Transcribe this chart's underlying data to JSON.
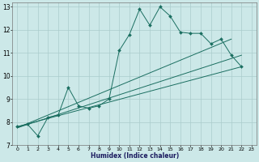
{
  "title": "",
  "xlabel": "Humidex (Indice chaleur)",
  "bg_color": "#cce8e8",
  "grid_color": "#aacccc",
  "line_color": "#1a6e60",
  "xlim": [
    -0.5,
    23.5
  ],
  "ylim": [
    7,
    13.2
  ],
  "xticks": [
    0,
    1,
    2,
    3,
    4,
    5,
    6,
    7,
    8,
    9,
    10,
    11,
    12,
    13,
    14,
    15,
    16,
    17,
    18,
    19,
    20,
    21,
    22,
    23
  ],
  "yticks": [
    7,
    8,
    9,
    10,
    11,
    12,
    13
  ],
  "series1_x": [
    0,
    1,
    2,
    3,
    4,
    5,
    6,
    7,
    8,
    9,
    10,
    11,
    12,
    13,
    14,
    15,
    16,
    17,
    18,
    19,
    20,
    21,
    22
  ],
  "series1_y": [
    7.8,
    7.9,
    7.4,
    8.2,
    8.3,
    9.5,
    8.7,
    8.6,
    8.7,
    9.0,
    11.1,
    11.8,
    12.9,
    12.2,
    13.0,
    12.6,
    11.9,
    11.85,
    11.85,
    11.4,
    11.6,
    10.9,
    10.4
  ],
  "series2_x": [
    0,
    22
  ],
  "series2_y": [
    7.8,
    10.4
  ],
  "series3_x": [
    0,
    22
  ],
  "series3_y": [
    7.75,
    10.9
  ],
  "series4_x": [
    0,
    21
  ],
  "series4_y": [
    7.75,
    11.6
  ]
}
